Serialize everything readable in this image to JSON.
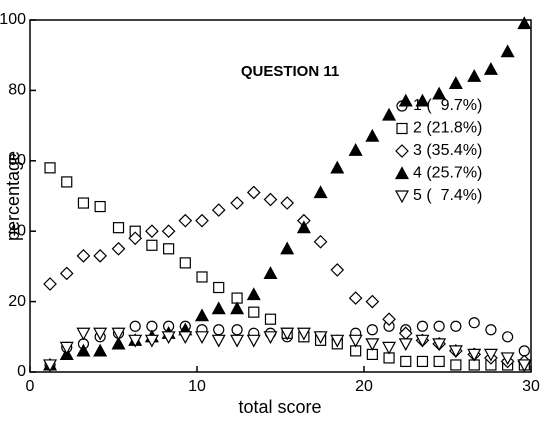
{
  "chart_data": {
    "type": "scatter",
    "annotation": "QUESTION 11",
    "x_label": "total score",
    "y_label": "percentage",
    "xlim": [
      0,
      30
    ],
    "xticks": [
      0,
      10,
      20,
      30
    ],
    "ylim": [
      0,
      100
    ],
    "yticks": [
      0,
      20,
      40,
      60,
      80,
      100
    ],
    "grid": false,
    "legend": "right",
    "x": [
      1.2,
      2.2,
      3.2,
      4.2,
      5.3,
      6.3,
      7.3,
      8.3,
      9.3,
      10.3,
      11.3,
      12.4,
      13.4,
      14.4,
      15.4,
      16.4,
      17.4,
      18.4,
      19.5,
      20.5,
      21.5,
      22.5,
      23.5,
      24.5,
      25.5,
      26.6,
      27.6,
      28.6,
      29.6
    ],
    "series": [
      {
        "name": "1 (  9.7%)",
        "color": "#000000",
        "marker": "circle",
        "filled": false,
        "values": [
          2,
          7,
          8,
          10,
          11,
          13,
          13,
          13,
          13,
          12,
          12,
          12,
          11,
          11,
          10,
          10,
          10,
          9,
          11,
          12,
          13,
          12,
          13,
          13,
          13,
          14,
          12,
          10,
          6
        ]
      },
      {
        "name": "2 (21.8%)",
        "color": "#000000",
        "marker": "square",
        "filled": false,
        "values": [
          58,
          54,
          48,
          47,
          41,
          40,
          36,
          35,
          31,
          27,
          24,
          21,
          17,
          15,
          11,
          10,
          9,
          8,
          6,
          5,
          4,
          3,
          3,
          3,
          2,
          2,
          2,
          2,
          2
        ]
      },
      {
        "name": "3 (35.4%)",
        "color": "#000000",
        "marker": "diamond",
        "filled": false,
        "values": [
          25,
          28,
          33,
          33,
          35,
          38,
          40,
          40,
          43,
          43,
          46,
          48,
          51,
          49,
          48,
          43,
          37,
          29,
          21,
          20,
          15,
          11,
          9,
          8,
          6,
          5,
          4,
          3,
          3
        ]
      },
      {
        "name": "4 (25.7%)",
        "color": "#000000",
        "marker": "triangle",
        "filled": true,
        "values": [
          2,
          5,
          6,
          6,
          8,
          9,
          10,
          11,
          12,
          16,
          18,
          18,
          22,
          28,
          35,
          41,
          51,
          58,
          63,
          67,
          73,
          77,
          77,
          79,
          82,
          84,
          86,
          91,
          99
        ]
      },
      {
        "name": "5 (  7.4%)",
        "color": "#000000",
        "marker": "triangle-down",
        "filled": false,
        "values": [
          2,
          7,
          11,
          11,
          11,
          9,
          9,
          10,
          10,
          10,
          9,
          9,
          9,
          10,
          11,
          11,
          10,
          9,
          9,
          8,
          7,
          8,
          9,
          8,
          6,
          5,
          5,
          4,
          2
        ]
      }
    ]
  }
}
